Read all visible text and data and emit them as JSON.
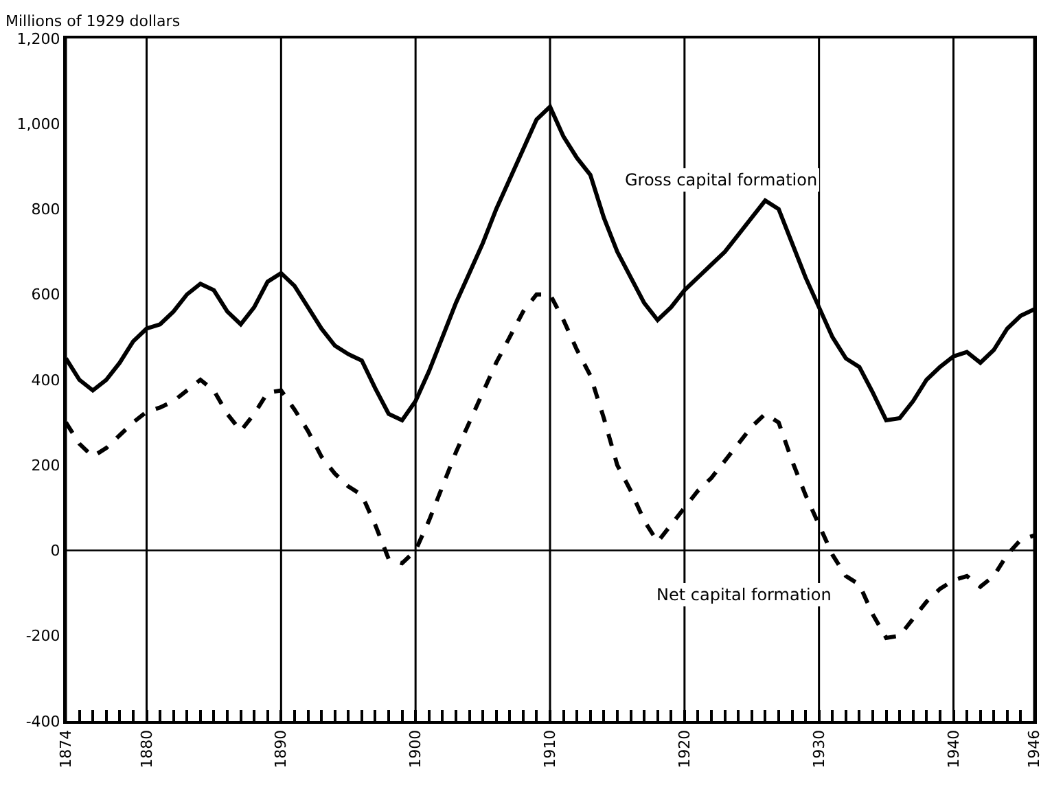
{
  "chart_data": {
    "type": "line",
    "ylabel": "Millions of 1929 dollars",
    "x": [
      1874,
      1875,
      1876,
      1877,
      1878,
      1879,
      1880,
      1881,
      1882,
      1883,
      1884,
      1885,
      1886,
      1887,
      1888,
      1889,
      1890,
      1891,
      1892,
      1893,
      1894,
      1895,
      1896,
      1897,
      1898,
      1899,
      1900,
      1901,
      1902,
      1903,
      1904,
      1905,
      1906,
      1907,
      1908,
      1909,
      1910,
      1911,
      1912,
      1913,
      1914,
      1915,
      1916,
      1917,
      1918,
      1919,
      1920,
      1921,
      1922,
      1923,
      1924,
      1925,
      1926,
      1927,
      1928,
      1929,
      1930,
      1931,
      1932,
      1933,
      1934,
      1935,
      1936,
      1937,
      1938,
      1939,
      1940,
      1941,
      1942,
      1943,
      1944,
      1945,
      1946
    ],
    "series": [
      {
        "color": "#000000",
        "line_style": "solid",
        "values": [
          450,
          400,
          375,
          400,
          440,
          490,
          520,
          530,
          560,
          600,
          625,
          610,
          560,
          530,
          570,
          630,
          650,
          620,
          570,
          520,
          480,
          460,
          445,
          380,
          320,
          305,
          350,
          420,
          500,
          580,
          650,
          720,
          800,
          870,
          940,
          1010,
          1040,
          970,
          920,
          880,
          780,
          700,
          640,
          580,
          540,
          570,
          610,
          640,
          670,
          700,
          740,
          780,
          820,
          800,
          720,
          640,
          570,
          500,
          450,
          430,
          370,
          305,
          310,
          350,
          400,
          430,
          455,
          465,
          440,
          470,
          520,
          550,
          565
        ]
      },
      {
        "color": "#000000",
        "line_style": "dashed",
        "values": [
          300,
          250,
          220,
          240,
          270,
          300,
          325,
          335,
          350,
          375,
          400,
          375,
          320,
          280,
          320,
          370,
          375,
          330,
          280,
          220,
          180,
          150,
          130,
          60,
          -20,
          -30,
          0,
          70,
          150,
          230,
          300,
          370,
          440,
          500,
          560,
          600,
          600,
          540,
          470,
          410,
          310,
          200,
          140,
          70,
          20,
          60,
          100,
          140,
          170,
          210,
          250,
          290,
          320,
          300,
          210,
          130,
          60,
          -10,
          -60,
          -80,
          -150,
          -205,
          -200,
          -160,
          -120,
          -90,
          -70,
          -60,
          -85,
          -60,
          -10,
          25,
          35
        ]
      }
    ],
    "annotations": [
      "Gross capital formation",
      "Net capital formation"
    ],
    "xlim": [
      1874,
      1946
    ],
    "xticks": [
      1874,
      {
        "value": 1875,
        "label": null
      },
      {
        "value": 1876,
        "label": null
      },
      {
        "value": 1877,
        "label": null
      },
      {
        "value": 1878,
        "label": null
      },
      {
        "value": 1879,
        "label": null
      },
      1880,
      {
        "value": 1881,
        "label": null
      },
      {
        "value": 1882,
        "label": null
      },
      {
        "value": 1883,
        "label": null
      },
      {
        "value": 1884,
        "label": null
      },
      {
        "value": 1885,
        "label": null
      },
      {
        "value": 1886,
        "label": null
      },
      {
        "value": 1887,
        "label": null
      },
      {
        "value": 1888,
        "label": null
      },
      {
        "value": 1889,
        "label": null
      },
      1890,
      {
        "value": 1891,
        "label": null
      },
      {
        "value": 1892,
        "label": null
      },
      {
        "value": 1893,
        "label": null
      },
      {
        "value": 1894,
        "label": null
      },
      {
        "value": 1895,
        "label": null
      },
      {
        "value": 1896,
        "label": null
      },
      {
        "value": 1897,
        "label": null
      },
      {
        "value": 1898,
        "label": null
      },
      {
        "value": 1899,
        "label": null
      },
      1900,
      {
        "value": 1901,
        "label": null
      },
      {
        "value": 1902,
        "label": null
      },
      {
        "value": 1903,
        "label": null
      },
      {
        "value": 1904,
        "label": null
      },
      {
        "value": 1905,
        "label": null
      },
      {
        "value": 1906,
        "label": null
      },
      {
        "value": 1907,
        "label": null
      },
      {
        "value": 1908,
        "label": null
      },
      {
        "value": 1909,
        "label": null
      },
      1910,
      {
        "value": 1911,
        "label": null
      },
      {
        "value": 1912,
        "label": null
      },
      {
        "value": 1913,
        "label": null
      },
      {
        "value": 1914,
        "label": null
      },
      {
        "value": 1915,
        "label": null
      },
      {
        "value": 1916,
        "label": null
      },
      {
        "value": 1917,
        "label": null
      },
      {
        "value": 1918,
        "label": null
      },
      {
        "value": 1919,
        "label": null
      },
      1920,
      {
        "value": 1921,
        "label": null
      },
      {
        "value": 1922,
        "label": null
      },
      {
        "value": 1923,
        "label": null
      },
      {
        "value": 1924,
        "label": null
      },
      {
        "value": 1925,
        "label": null
      },
      {
        "value": 1926,
        "label": null
      },
      {
        "value": 1927,
        "label": null
      },
      {
        "value": 1928,
        "label": null
      },
      {
        "value": 1929,
        "label": null
      },
      1930,
      {
        "value": 1931,
        "label": null
      },
      {
        "value": 1932,
        "label": null
      },
      {
        "value": 1933,
        "label": null
      },
      {
        "value": 1934,
        "label": null
      },
      {
        "value": 1935,
        "label": null
      },
      {
        "value": 1936,
        "label": null
      },
      {
        "value": 1937,
        "label": null
      },
      {
        "value": 1938,
        "label": null
      },
      {
        "value": 1939,
        "label": null
      },
      1940,
      {
        "value": 1941,
        "label": null
      },
      {
        "value": 1942,
        "label": null
      },
      {
        "value": 1943,
        "label": null
      },
      {
        "value": 1944,
        "label": null
      },
      {
        "value": 1945,
        "label": null
      },
      1946
    ],
    "ylim": [
      -400,
      1200
    ],
    "yticks": [
      -400,
      -200,
      0,
      200,
      400,
      600,
      800,
      {
        "value": 1000,
        "label": "1,000"
      },
      {
        "value": 1200,
        "label": "1,200"
      }
    ],
    "ref_lines": [
      {
        "axis": "y",
        "value": 0,
        "color": "#000000"
      }
    ],
    "grid": "x",
    "marker": "none"
  }
}
